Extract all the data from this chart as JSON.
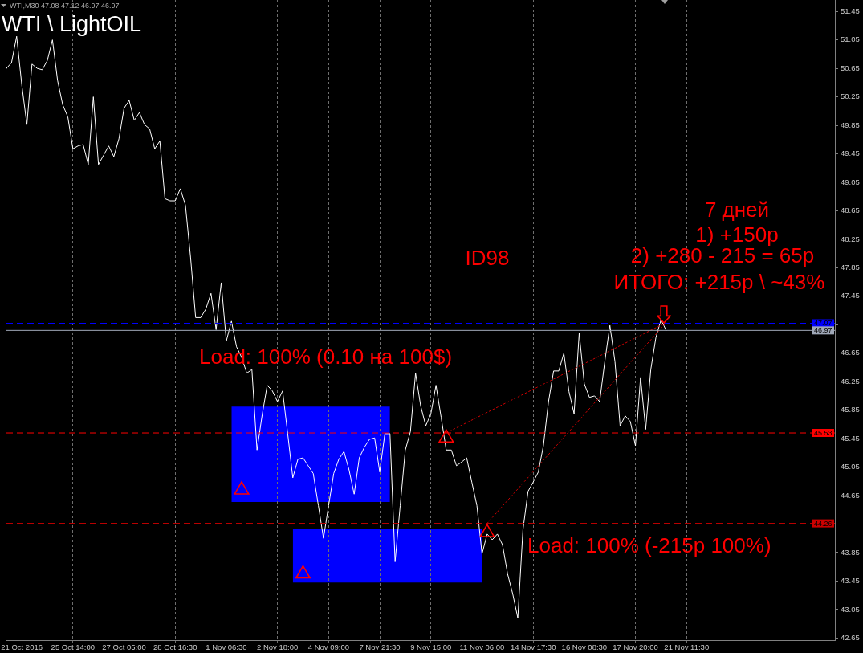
{
  "chart_data": {
    "type": "line",
    "title": "WTI \\ LightOIL",
    "subtitle": "WTI,M30 47.08 47.12 46.97 46.97",
    "categories": [
      null,
      null,
      null,
      "21 Oct 2016",
      null,
      null,
      null,
      null,
      null,
      null,
      null,
      null,
      null,
      "25 Oct 14:00",
      null,
      null,
      null,
      null,
      null,
      null,
      null,
      null,
      null,
      "27 Oct 05:00",
      null,
      null,
      null,
      null,
      null,
      null,
      null,
      null,
      null,
      "28 Oct 16:30",
      null,
      null,
      null,
      null,
      null,
      null,
      null,
      null,
      null,
      "1 Nov 06:30",
      null,
      null,
      null,
      null,
      null,
      null,
      null,
      null,
      null,
      "2 Nov 18:00",
      null,
      null,
      null,
      null,
      null,
      null,
      null,
      null,
      null,
      "4 Nov 09:00",
      null,
      null,
      null,
      null,
      null,
      null,
      null,
      null,
      null,
      "7 Nov 21:30",
      null,
      null,
      null,
      null,
      null,
      null,
      null,
      null,
      null,
      "9 Nov 15:00",
      null,
      null,
      null,
      null,
      null,
      null,
      null,
      null,
      null,
      "11 Nov 06:00",
      null,
      null,
      null,
      null,
      null,
      null,
      null,
      null,
      null,
      "14 Nov 17:30",
      null,
      null,
      null,
      null,
      null,
      null,
      null,
      null,
      null,
      "16 Nov 08:30",
      null,
      null,
      null,
      null,
      null,
      null,
      null,
      null,
      null,
      "17 Nov 20:00",
      null,
      null,
      null,
      null,
      null,
      null,
      null,
      null,
      null,
      "21 Nov 11:30",
      null,
      null,
      null,
      null,
      null,
      null,
      null,
      null,
      null,
      null,
      null,
      null,
      null,
      null,
      null,
      null,
      null,
      null,
      null,
      null,
      null,
      null,
      null,
      null,
      null,
      null,
      null,
      null,
      null
    ],
    "series": [
      {
        "color": "#ffffff",
        "values": [
          50.65,
          50.73,
          51.1,
          50.42,
          49.86,
          50.71,
          50.65,
          50.63,
          50.76,
          51.05,
          50.48,
          50.14,
          49.97,
          49.52,
          49.56,
          49.58,
          49.3,
          50.25,
          49.3,
          49.43,
          49.56,
          49.41,
          49.66,
          50.09,
          50.2,
          49.92,
          50.03,
          49.86,
          49.8,
          49.52,
          49.63,
          48.82,
          48.79,
          48.79,
          48.96,
          48.73,
          48.0,
          47.15,
          47.15,
          47.27,
          47.49,
          46.98,
          47.64,
          46.82,
          47.1,
          46.74,
          46.59,
          46.37,
          46.42,
          45.29,
          45.78,
          46.2,
          46.12,
          45.97,
          46.12,
          45.52,
          44.9,
          45.16,
          45.18,
          45.07,
          44.96,
          44.51,
          44.05,
          44.51,
          44.96,
          45.16,
          45.27,
          45.01,
          44.67,
          45.18,
          45.33,
          45.44,
          45.46,
          44.98,
          45.52,
          45.52,
          43.72,
          44.51,
          45.29,
          45.55,
          46.37,
          45.91,
          45.63,
          45.8,
          46.2,
          45.75,
          45.29,
          45.29,
          45.07,
          45.12,
          45.18,
          44.84,
          44.51,
          43.83,
          44.11,
          44.03,
          44.11,
          43.96,
          43.55,
          43.27,
          42.93,
          44.17,
          44.71,
          44.84,
          44.98,
          45.35,
          45.97,
          46.4,
          46.4,
          46.65,
          46.11,
          45.8,
          46.93,
          46.22,
          46.03,
          46.05,
          45.97,
          46.53,
          47.04,
          46.53,
          45.63,
          45.77,
          45.69,
          45.35,
          46.31,
          45.58,
          46.42,
          46.87,
          47.12,
          46.97,
          null,
          null,
          null,
          null,
          null,
          null,
          null,
          null,
          null,
          null,
          null,
          null,
          null,
          null,
          null,
          null,
          null,
          null,
          null,
          null,
          null,
          null,
          null,
          null,
          null,
          null,
          null,
          null,
          null,
          null,
          null,
          null,
          null
        ]
      },
      {
        "color": "#0000ff",
        "values": [
          null,
          null,
          null,
          null,
          null,
          null,
          null,
          null,
          null,
          null,
          null,
          null,
          null,
          null,
          null,
          null,
          null,
          null,
          null,
          null,
          null,
          null,
          null,
          null,
          null,
          null,
          null,
          null,
          null,
          null,
          null,
          null,
          null,
          null,
          null,
          null,
          null,
          null,
          null,
          null,
          null,
          null,
          null,
          null,
          null,
          null,
          null,
          null,
          null,
          null,
          null,
          null,
          null,
          null,
          null,
          null,
          null,
          null,
          null,
          null,
          null,
          null,
          null,
          null,
          null,
          null,
          null,
          null,
          null,
          null,
          null,
          null,
          null,
          null,
          null,
          null,
          null,
          null,
          null,
          null,
          null,
          null,
          null,
          null,
          null,
          null,
          null,
          null,
          null,
          null,
          null,
          null,
          null,
          null,
          null,
          null,
          null,
          null,
          null,
          null,
          null,
          null,
          null,
          null,
          null,
          null,
          null,
          null,
          null,
          null,
          null,
          null,
          null,
          null,
          null,
          null,
          null,
          null,
          null,
          null,
          null,
          null,
          null,
          null,
          null,
          null,
          null,
          null,
          null,
          null,
          null,
          null,
          null,
          null,
          null,
          null,
          null,
          null,
          null,
          null,
          null,
          null,
          null,
          null,
          null,
          null,
          null,
          null,
          null,
          null,
          null,
          null,
          null,
          null,
          null,
          null,
          null,
          null,
          null,
          null,
          null,
          null,
          null
        ],
        "lower": [
          null,
          null,
          null,
          null,
          null,
          null,
          null,
          null,
          null,
          null,
          null,
          null,
          null,
          null,
          null,
          null,
          null,
          null,
          null,
          null,
          null,
          null,
          null,
          null,
          null,
          null,
          null,
          null,
          null,
          null,
          null,
          null,
          null,
          null,
          null,
          null,
          null,
          null,
          null,
          null,
          null,
          null,
          null,
          null,
          44.56,
          44.56,
          44.56,
          44.56,
          44.56,
          44.56,
          44.56,
          44.56,
          44.56,
          44.56,
          44.56,
          44.56,
          44.56,
          44.56,
          44.56,
          44.56,
          44.56,
          44.56,
          44.56,
          44.56,
          44.56,
          44.56,
          44.56,
          44.56,
          44.56,
          44.56,
          44.56,
          44.56,
          44.56,
          44.56,
          44.56,
          44.56,
          null,
          null,
          null,
          null,
          null,
          null,
          null,
          null,
          null,
          null,
          null,
          null,
          null,
          null,
          null,
          null,
          null,
          null,
          null,
          null,
          null,
          null,
          null,
          null,
          null,
          null,
          null,
          null,
          null,
          null,
          null,
          null,
          null,
          null,
          null,
          null,
          null,
          null,
          null,
          null,
          null,
          null,
          null,
          null,
          null,
          null,
          null,
          null,
          null,
          null,
          null,
          null,
          null,
          null,
          null,
          null,
          null,
          null,
          null,
          null,
          null,
          null,
          null,
          null,
          null,
          null,
          null,
          null,
          null,
          null,
          null,
          null,
          null,
          null,
          null,
          null,
          null,
          null,
          null,
          null,
          null,
          null,
          null,
          null,
          null,
          null,
          null
        ],
        "upper": [
          null,
          null,
          null,
          null,
          null,
          null,
          null,
          null,
          null,
          null,
          null,
          null,
          null,
          null,
          null,
          null,
          null,
          null,
          null,
          null,
          null,
          null,
          null,
          null,
          null,
          null,
          null,
          null,
          null,
          null,
          null,
          null,
          null,
          null,
          null,
          null,
          null,
          null,
          null,
          null,
          null,
          null,
          null,
          null,
          45.9,
          45.9,
          45.9,
          45.9,
          45.9,
          45.9,
          45.9,
          45.9,
          45.9,
          45.9,
          45.9,
          45.9,
          45.9,
          45.9,
          45.9,
          45.9,
          45.9,
          45.9,
          45.9,
          45.9,
          45.9,
          45.9,
          45.9,
          45.9,
          45.9,
          45.9,
          45.9,
          45.9,
          45.9,
          45.9,
          45.9,
          45.9,
          null,
          null,
          null,
          null,
          null,
          null,
          null,
          null,
          null,
          null,
          null,
          null,
          null,
          null,
          null,
          null,
          null,
          null,
          null,
          null,
          null,
          null,
          null,
          null,
          null,
          null,
          null,
          null,
          null,
          null,
          null,
          null,
          null,
          null,
          null,
          null,
          null,
          null,
          null,
          null,
          null,
          null,
          null,
          null,
          null,
          null,
          null,
          null,
          null,
          null,
          null,
          null,
          null,
          null,
          null,
          null,
          null,
          null,
          null,
          null,
          null,
          null,
          null,
          null,
          null,
          null,
          null,
          null,
          null,
          null,
          null,
          null,
          null,
          null,
          null,
          null,
          null,
          null,
          null,
          null,
          null,
          null,
          null,
          null,
          null,
          null,
          null
        ]
      },
      {
        "color": "#0000ff",
        "values": [
          null,
          null,
          null,
          null,
          null,
          null,
          null,
          null,
          null,
          null,
          null,
          null,
          null,
          null,
          null,
          null,
          null,
          null,
          null,
          null,
          null,
          null,
          null,
          null,
          null,
          null,
          null,
          null,
          null,
          null,
          null,
          null,
          null,
          null,
          null,
          null,
          null,
          null,
          null,
          null,
          null,
          null,
          null,
          null,
          null,
          null,
          null,
          null,
          null,
          null,
          null,
          null,
          null,
          null,
          null,
          null,
          null,
          null,
          null,
          null,
          null,
          null,
          null,
          null,
          null,
          null,
          null,
          null,
          null,
          null,
          null,
          null,
          null,
          null,
          null,
          null,
          null,
          null,
          null,
          null,
          null,
          null,
          null,
          null,
          null,
          null,
          null,
          null,
          null,
          null,
          null,
          null,
          null,
          null,
          null,
          null,
          null,
          null,
          null,
          null,
          null,
          null,
          null,
          null,
          null,
          null,
          null,
          null,
          null,
          null,
          null,
          null,
          null,
          null,
          null,
          null,
          null,
          null,
          null,
          null,
          null,
          null,
          null,
          null,
          null,
          null,
          null,
          null,
          null,
          null,
          null,
          null,
          null,
          null,
          null,
          null,
          null,
          null,
          null,
          null,
          null,
          null,
          null,
          null,
          null,
          null,
          null,
          null,
          null,
          null,
          null,
          null,
          null,
          null,
          null,
          null,
          null,
          null,
          null,
          null,
          null,
          null,
          null
        ],
        "lower": [
          null,
          null,
          null,
          null,
          null,
          null,
          null,
          null,
          null,
          null,
          null,
          null,
          null,
          null,
          null,
          null,
          null,
          null,
          null,
          null,
          null,
          null,
          null,
          null,
          null,
          null,
          null,
          null,
          null,
          null,
          null,
          null,
          null,
          null,
          null,
          null,
          null,
          null,
          null,
          null,
          null,
          null,
          null,
          null,
          null,
          null,
          null,
          null,
          null,
          null,
          null,
          null,
          null,
          null,
          null,
          null,
          43.43,
          43.43,
          43.43,
          43.43,
          43.43,
          43.43,
          43.43,
          43.43,
          43.43,
          43.43,
          43.43,
          43.43,
          43.43,
          43.43,
          43.43,
          43.43,
          43.43,
          43.43,
          43.43,
          43.43,
          43.43,
          43.43,
          43.43,
          43.43,
          43.43,
          43.43,
          43.43,
          43.43,
          43.43,
          43.43,
          43.43,
          43.43,
          43.43,
          43.43,
          43.43,
          43.43,
          43.43,
          43.43,
          null,
          null,
          null,
          null,
          null,
          null,
          null,
          null,
          null,
          null,
          null,
          null,
          null,
          null,
          null,
          null,
          null,
          null,
          null,
          null,
          null,
          null,
          null,
          null,
          null,
          null,
          null,
          null,
          null,
          null,
          null,
          null,
          null,
          null,
          null,
          null,
          null,
          null,
          null,
          null,
          null,
          null,
          null,
          null,
          null,
          null,
          null,
          null,
          null,
          null,
          null,
          null,
          null,
          null,
          null,
          null,
          null,
          null,
          null,
          null,
          null,
          null,
          null,
          null,
          null,
          null,
          null,
          null,
          null
        ],
        "upper": [
          null,
          null,
          null,
          null,
          null,
          null,
          null,
          null,
          null,
          null,
          null,
          null,
          null,
          null,
          null,
          null,
          null,
          null,
          null,
          null,
          null,
          null,
          null,
          null,
          null,
          null,
          null,
          null,
          null,
          null,
          null,
          null,
          null,
          null,
          null,
          null,
          null,
          null,
          null,
          null,
          null,
          null,
          null,
          null,
          null,
          null,
          null,
          null,
          null,
          null,
          null,
          null,
          null,
          null,
          null,
          null,
          44.18,
          44.18,
          44.18,
          44.18,
          44.18,
          44.18,
          44.18,
          44.18,
          44.18,
          44.18,
          44.18,
          44.18,
          44.18,
          44.18,
          44.18,
          44.18,
          44.18,
          44.18,
          44.18,
          44.18,
          44.18,
          44.18,
          44.18,
          44.18,
          44.18,
          44.18,
          44.18,
          44.18,
          44.18,
          44.18,
          44.18,
          44.18,
          44.18,
          44.18,
          44.18,
          44.18,
          44.18,
          44.18,
          null,
          null,
          null,
          null,
          null,
          null,
          null,
          null,
          null,
          null,
          null,
          null,
          null,
          null,
          null,
          null,
          null,
          null,
          null,
          null,
          null,
          null,
          null,
          null,
          null,
          null,
          null,
          null,
          null,
          null,
          null,
          null,
          null,
          null,
          null,
          null,
          null,
          null,
          null,
          null,
          null,
          null,
          null,
          null,
          null,
          null,
          null,
          null,
          null,
          null,
          null,
          null,
          null,
          null,
          null,
          null,
          null,
          null,
          null,
          null,
          null,
          null,
          null,
          null,
          null,
          null,
          null,
          null,
          null
        ]
      },
      {
        "color": "#cc0000",
        "line_style": "dotted",
        "values": [
          null,
          null,
          null,
          null,
          null,
          null,
          null,
          null,
          null,
          null,
          null,
          null,
          null,
          null,
          null,
          null,
          null,
          null,
          null,
          null,
          null,
          null,
          null,
          null,
          null,
          null,
          null,
          null,
          null,
          null,
          null,
          null,
          null,
          null,
          null,
          null,
          null,
          null,
          null,
          null,
          null,
          null,
          null,
          null,
          null,
          null,
          null,
          null,
          null,
          null,
          null,
          null,
          null,
          null,
          null,
          null,
          null,
          null,
          null,
          null,
          null,
          null,
          null,
          null,
          null,
          null,
          null,
          null,
          null,
          null,
          null,
          null,
          null,
          null,
          null,
          null,
          null,
          null,
          null,
          null,
          null,
          null,
          null,
          null,
          null,
          null,
          45.53,
          null,
          null,
          null,
          null,
          null,
          null,
          null,
          null,
          null,
          null,
          null,
          null,
          null,
          null,
          null,
          null,
          null,
          null,
          null,
          null,
          null,
          null,
          null,
          null,
          null,
          null,
          null,
          null,
          null,
          null,
          null,
          null,
          null,
          null,
          null,
          null,
          null,
          null,
          null,
          null,
          null,
          null,
          47.08,
          null,
          null,
          null,
          null,
          null,
          null,
          null,
          null,
          null,
          null,
          null,
          null,
          null,
          null,
          null,
          null,
          null,
          null,
          null,
          null,
          null,
          null,
          null,
          null,
          null,
          null,
          null,
          null,
          null,
          null,
          null,
          null,
          null
        ]
      },
      {
        "color": "#cc0000",
        "line_style": "dotted",
        "values": [
          null,
          null,
          null,
          null,
          null,
          null,
          null,
          null,
          null,
          null,
          null,
          null,
          null,
          null,
          null,
          null,
          null,
          null,
          null,
          null,
          null,
          null,
          null,
          null,
          null,
          null,
          null,
          null,
          null,
          null,
          null,
          null,
          null,
          null,
          null,
          null,
          null,
          null,
          null,
          null,
          null,
          null,
          null,
          null,
          null,
          null,
          null,
          null,
          null,
          null,
          null,
          null,
          null,
          null,
          null,
          null,
          null,
          null,
          null,
          null,
          null,
          null,
          null,
          null,
          null,
          null,
          null,
          null,
          null,
          null,
          null,
          null,
          null,
          null,
          null,
          null,
          null,
          null,
          null,
          null,
          null,
          null,
          null,
          null,
          null,
          null,
          null,
          null,
          null,
          null,
          null,
          null,
          null,
          null,
          44.26,
          null,
          null,
          null,
          null,
          null,
          null,
          null,
          null,
          null,
          null,
          null,
          null,
          null,
          null,
          null,
          null,
          null,
          null,
          null,
          null,
          null,
          null,
          null,
          null,
          null,
          null,
          null,
          null,
          null,
          null,
          null,
          null,
          null,
          null,
          47.08,
          null,
          null,
          null,
          null,
          null,
          null,
          null,
          null,
          null,
          null,
          null,
          null,
          null,
          null,
          null,
          null,
          null,
          null,
          null,
          null,
          null,
          null,
          null,
          null,
          null,
          null,
          null,
          null,
          null,
          null,
          null,
          null,
          null
        ]
      },
      {
        "type": "scatter",
        "color": "#ff0000",
        "marker": "triangle",
        "values": [
          null,
          null,
          null,
          null,
          null,
          null,
          null,
          null,
          null,
          null,
          null,
          null,
          null,
          null,
          null,
          null,
          null,
          null,
          null,
          null,
          null,
          null,
          null,
          null,
          null,
          null,
          null,
          null,
          null,
          null,
          null,
          null,
          null,
          null,
          null,
          null,
          null,
          null,
          null,
          null,
          null,
          null,
          null,
          null,
          null,
          null,
          44.73,
          null,
          null,
          null,
          null,
          null,
          null,
          null,
          null,
          null,
          null,
          null,
          43.55,
          null,
          null,
          null,
          null,
          null,
          null,
          null,
          null,
          null,
          null,
          null,
          null,
          null,
          null,
          null,
          null,
          null,
          null,
          null,
          null,
          null,
          null,
          null,
          null,
          null,
          null,
          null,
          45.46,
          null,
          null,
          null,
          null,
          null,
          null,
          null,
          44.13,
          null,
          null,
          null,
          null,
          null,
          null,
          null,
          null,
          null,
          null,
          null,
          null,
          null,
          null,
          null,
          null,
          null,
          null,
          null,
          null,
          null,
          null,
          null,
          null,
          null,
          null,
          null,
          null,
          null,
          null,
          null,
          null,
          null,
          null,
          null,
          null,
          null,
          null,
          null,
          null,
          null,
          null,
          null,
          null,
          null,
          null,
          null,
          null,
          null,
          null,
          null,
          null,
          null,
          null,
          null,
          null,
          null,
          null,
          null,
          null,
          null,
          null,
          null,
          null,
          null,
          null,
          null,
          null
        ]
      }
    ],
    "ylim": [
      42.62,
      51.61
    ],
    "yticks": [
      42.65,
      43.05,
      43.45,
      43.85,
      {
        "value": 44.25,
        "label": null
      },
      44.65,
      45.05,
      45.45,
      45.85,
      46.25,
      46.65,
      {
        "value": 47.05,
        "label": null
      },
      47.45,
      47.85,
      48.25,
      48.65,
      49.05,
      49.45,
      49.85,
      50.25,
      50.65,
      51.05,
      51.45
    ],
    "grid": "x",
    "marker": "none",
    "ref_lines": [
      {
        "axis": "y",
        "value": 47.07,
        "label": "47.07",
        "color": "#0000ff",
        "line_style": "dashed"
      },
      {
        "axis": "y",
        "value": 46.97,
        "label": "46.97",
        "color": "#a0a8b8",
        "line_style": "solid"
      },
      {
        "axis": "y",
        "value": 45.53,
        "label": "45.53",
        "color": "#ff0000",
        "line_style": "dashed"
      },
      {
        "axis": "y",
        "value": 44.26,
        "label": "44.26",
        "color": "#cc0000",
        "line_style": "dashed"
      }
    ],
    "annotations": [
      "7 дней",
      "1) +150р",
      "2) +280 - 215 = 65р",
      "ID98",
      "ИТОГО: +215р \\ ~43%",
      "Load: 100% (0.10 на 100$)",
      "Load: 100% (-215р 100%)"
    ]
  }
}
